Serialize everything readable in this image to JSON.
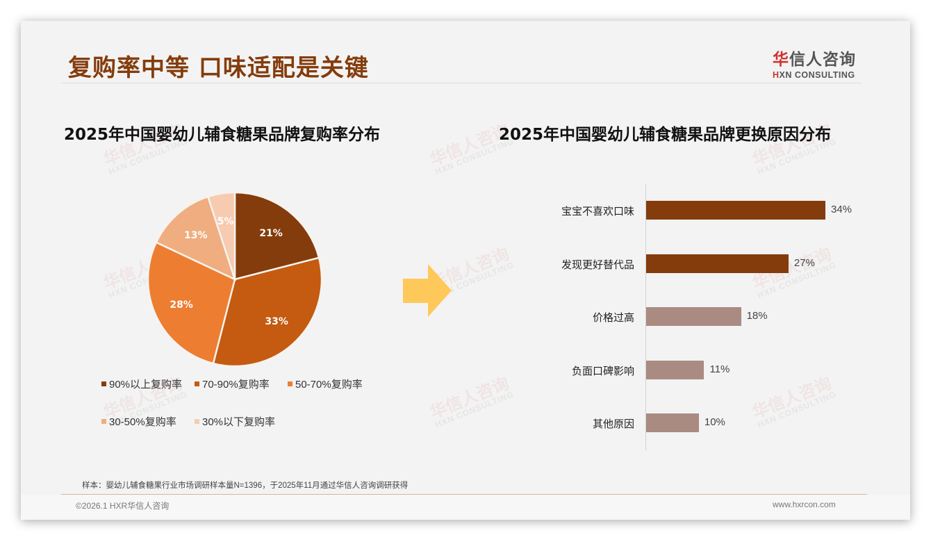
{
  "header": {
    "title": "复购率中等 口味适配是关键",
    "logo_cn_first": "华",
    "logo_cn_rest": "信人咨询",
    "logo_en_h": "H",
    "logo_en_rest": "XN CONSULTING"
  },
  "watermark": {
    "cn": "华信人咨询",
    "en": "HXN CONSULTING"
  },
  "colors": {
    "title": "#843c0c",
    "pie": [
      "#843c0c",
      "#c55a11",
      "#ed7d31",
      "#f0ad7f",
      "#f6cbaf"
    ],
    "bar_dark": "#843c0c",
    "bar_light": "#a98b82",
    "arrow": "#ffc85a"
  },
  "chart_data": [
    {
      "type": "pie",
      "title": "2025年中国婴幼儿辅食糖果品牌复购率分布",
      "categories": [
        "90%以上复购率",
        "70-90%复购率",
        "50-70%复购率",
        "30-50%复购率",
        "30%以下复购率"
      ],
      "values": [
        21,
        33,
        28,
        13,
        5
      ],
      "labels": [
        "21%",
        "33%",
        "28%",
        "13%",
        "5%"
      ],
      "legend_position": "bottom"
    },
    {
      "type": "bar",
      "orientation": "horizontal",
      "title": "2025年中国婴幼儿辅食糖果品牌更换原因分布",
      "categories": [
        "宝宝不喜欢口味",
        "发现更好替代品",
        "价格过高",
        "负面口碑影响",
        "其他原因"
      ],
      "values": [
        34,
        27,
        18,
        11,
        10
      ],
      "labels": [
        "34%",
        "27%",
        "18%",
        "11%",
        "10%"
      ],
      "xlabel": "",
      "ylabel": "",
      "grid": false
    }
  ],
  "footer": {
    "note": "样本：婴幼儿辅食糖果行业市场调研样本量N=1396，于2025年11月通过华信人咨询调研获得",
    "copyright": "©2026.1 HXR华信人咨询",
    "website": "www.hxrcon.com"
  }
}
